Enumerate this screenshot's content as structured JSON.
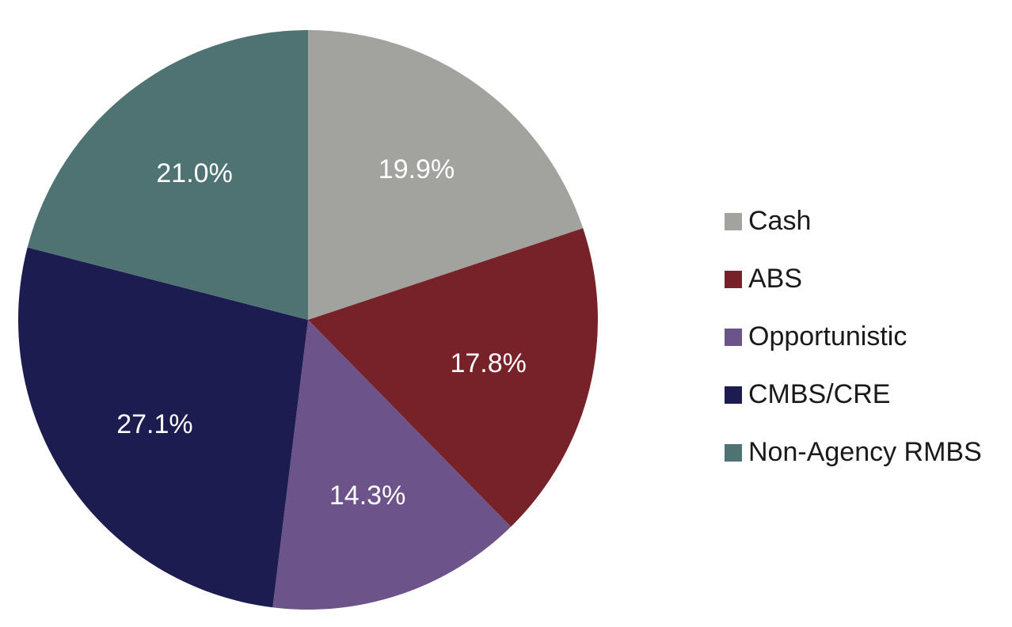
{
  "chart_data": {
    "type": "pie",
    "title": "",
    "start": "12 o'clock",
    "direction": "clockwise",
    "legend_position": "right",
    "categories": [
      "Cash",
      "ABS",
      "Opportunistic",
      "CMBS/CRE",
      "Non-Agency RMBS"
    ],
    "values": [
      19.9,
      17.8,
      14.3,
      27.1,
      21.0
    ],
    "data_labels": [
      "19.9%",
      "17.8%",
      "14.3%",
      "27.1%",
      "21.0%"
    ],
    "colors": [
      "#a2a39f",
      "#762228",
      "#6c548a",
      "#1d1c50",
      "#4f7373"
    ],
    "label_color": "#ffffff"
  }
}
